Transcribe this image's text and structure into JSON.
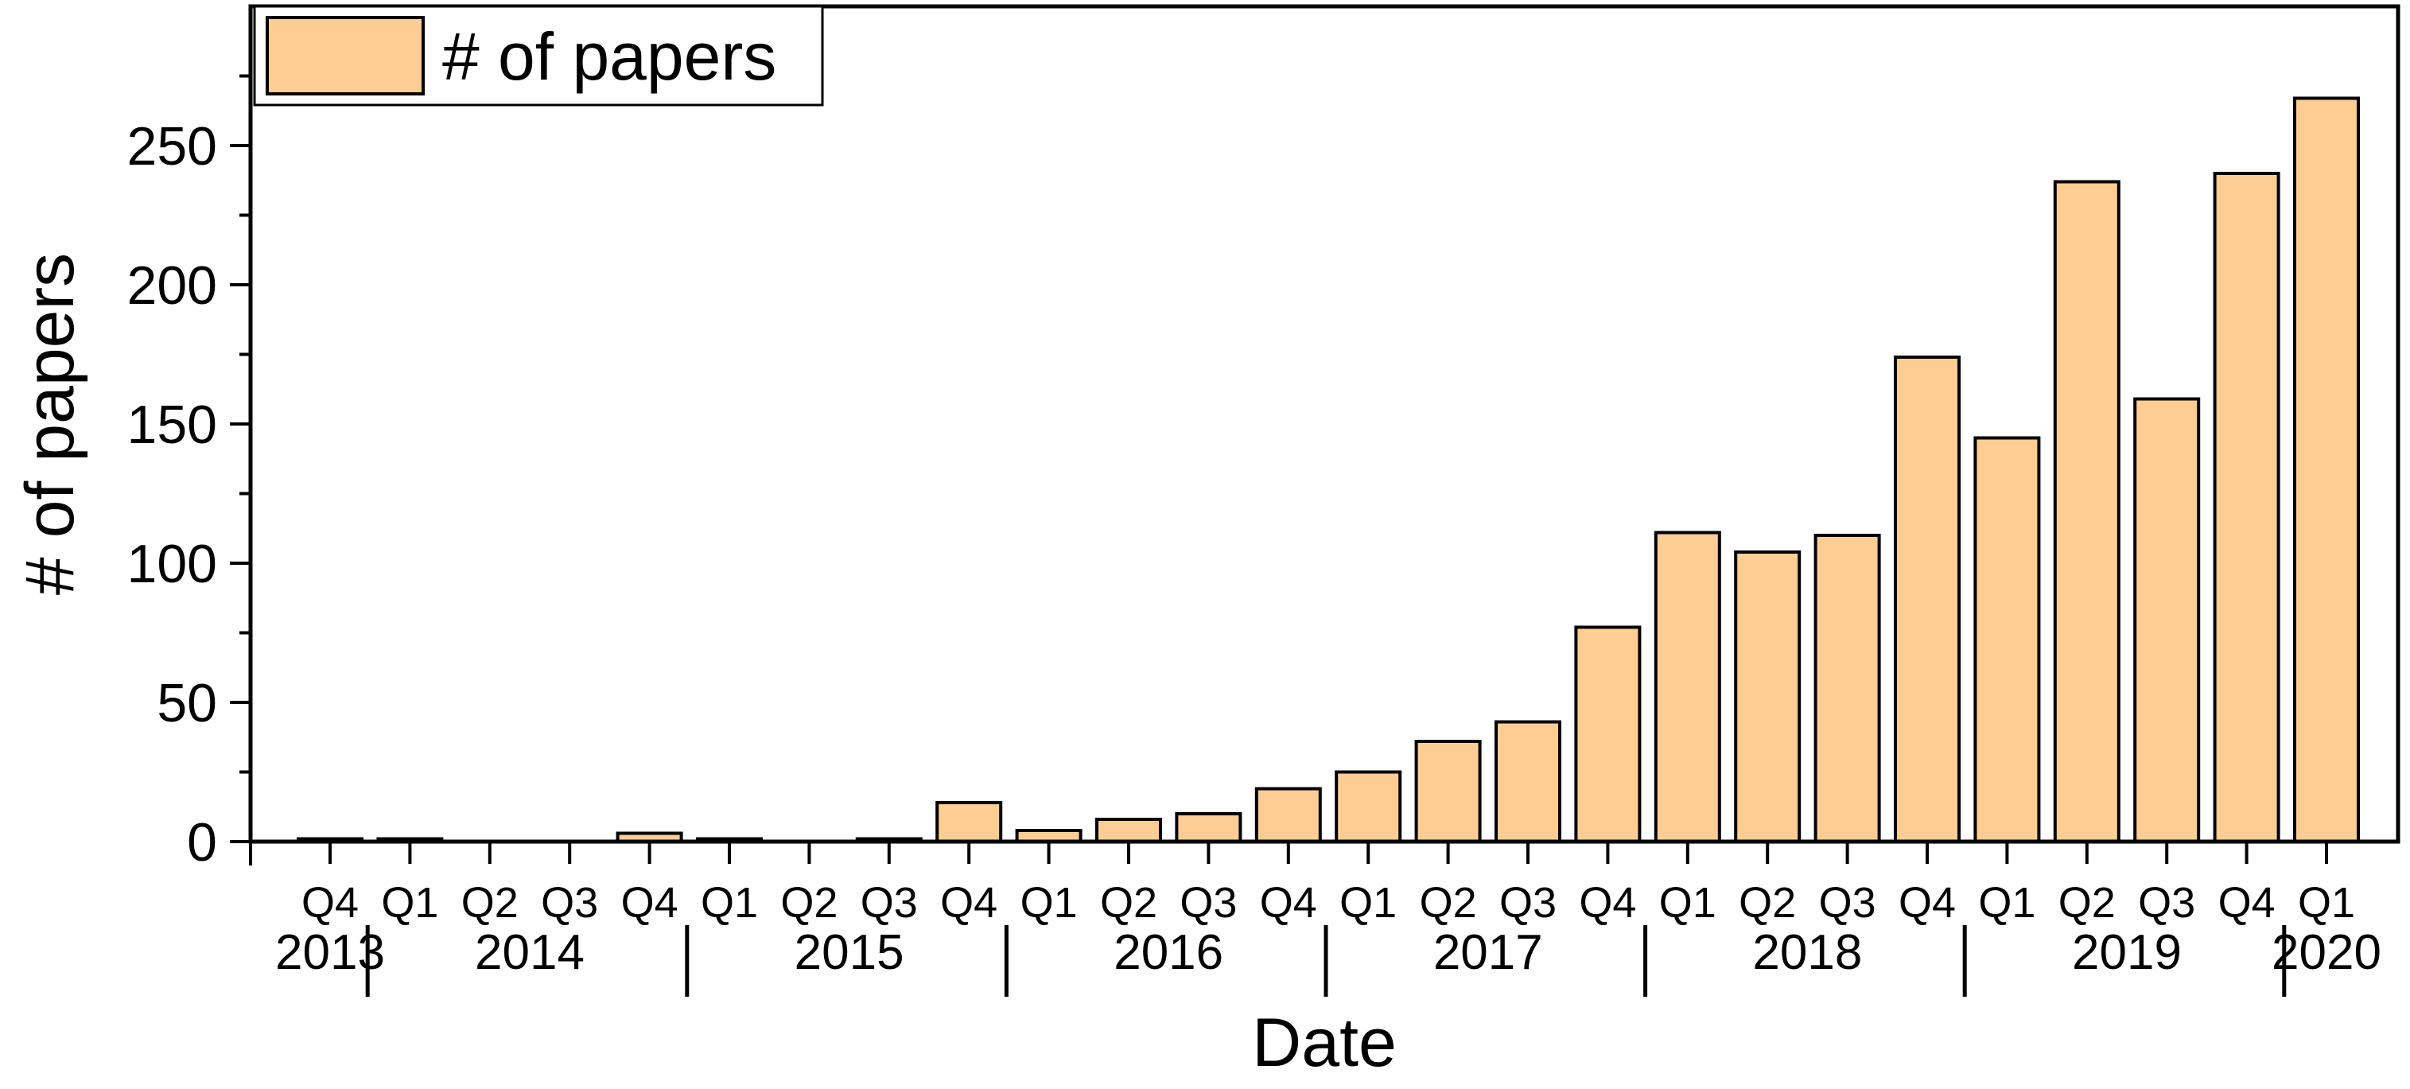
{
  "chart_data": {
    "type": "bar",
    "xlabel": "Date",
    "ylabel": "# of papers",
    "ylim": [
      0,
      300
    ],
    "yticks": [
      0,
      50,
      100,
      150,
      200,
      250
    ],
    "legend": {
      "label": "# of papers",
      "placement": "top-left"
    },
    "categories": [
      "Q4",
      "Q1",
      "Q2",
      "Q3",
      "Q4",
      "Q1",
      "Q2",
      "Q3",
      "Q4",
      "Q1",
      "Q2",
      "Q3",
      "Q4",
      "Q1",
      "Q2",
      "Q3",
      "Q4",
      "Q1",
      "Q2",
      "Q3",
      "Q4",
      "Q1",
      "Q2",
      "Q3",
      "Q4",
      "Q1"
    ],
    "year_groups": [
      {
        "label": "2013",
        "start": 0,
        "end": 0
      },
      {
        "label": "2014",
        "start": 1,
        "end": 4
      },
      {
        "label": "2015",
        "start": 5,
        "end": 8
      },
      {
        "label": "2016",
        "start": 9,
        "end": 12
      },
      {
        "label": "2017",
        "start": 13,
        "end": 16
      },
      {
        "label": "2018",
        "start": 17,
        "end": 20
      },
      {
        "label": "2019",
        "start": 21,
        "end": 24
      },
      {
        "label": "2020",
        "start": 25,
        "end": 25
      }
    ],
    "series": [
      {
        "name": "# of papers",
        "color": "#FECD94",
        "values": [
          1,
          1,
          0,
          0,
          3,
          1,
          0,
          1,
          14,
          4,
          8,
          10,
          19,
          25,
          36,
          43,
          77,
          111,
          104,
          110,
          174,
          145,
          237,
          159,
          240,
          267
        ]
      }
    ]
  }
}
